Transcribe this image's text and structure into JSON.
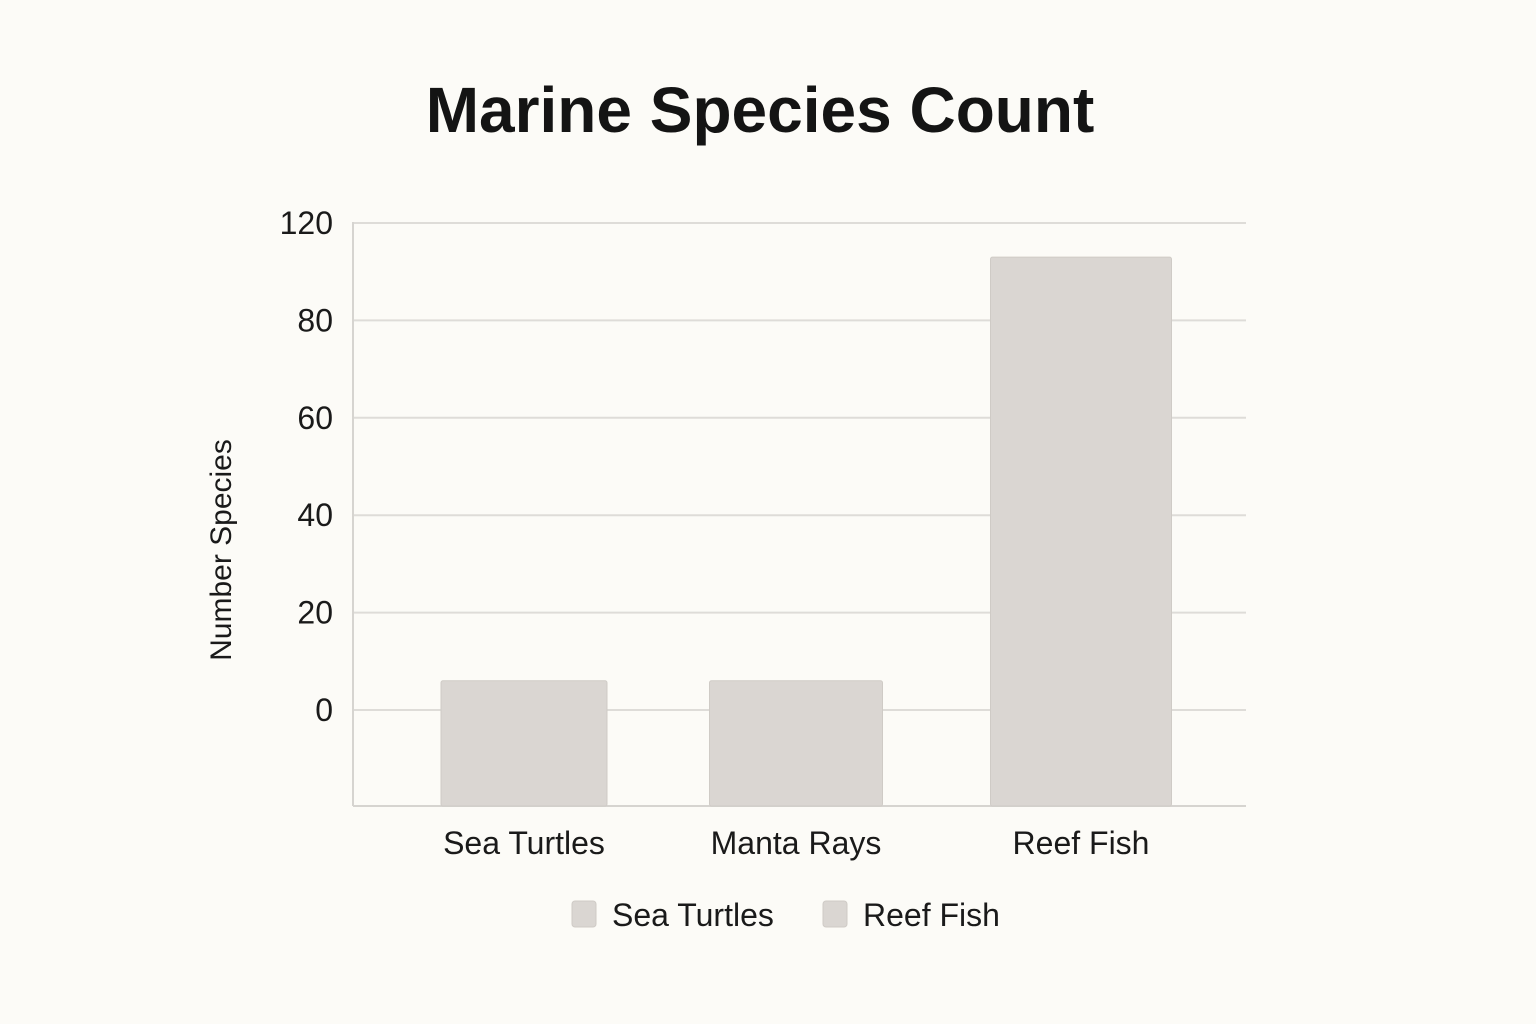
{
  "chart_data": {
    "type": "bar",
    "title": "Marine Species Count",
    "xlabel": "",
    "ylabel": "Number Species",
    "categories": [
      "Sea Turtles",
      "Manta Rays",
      "Reef Fish"
    ],
    "values": [
      6,
      6,
      93
    ],
    "ylim": [
      -20,
      120
    ],
    "yticks": [
      0,
      20,
      40,
      60,
      80,
      120
    ],
    "grid": true,
    "bar_color": "#dad6d2",
    "legend": {
      "placement": "bottom",
      "entries": [
        {
          "label": "Sea Turtles",
          "color": "#dad6d2"
        },
        {
          "label": "Reef Fish",
          "color": "#dad6d2"
        }
      ]
    }
  }
}
